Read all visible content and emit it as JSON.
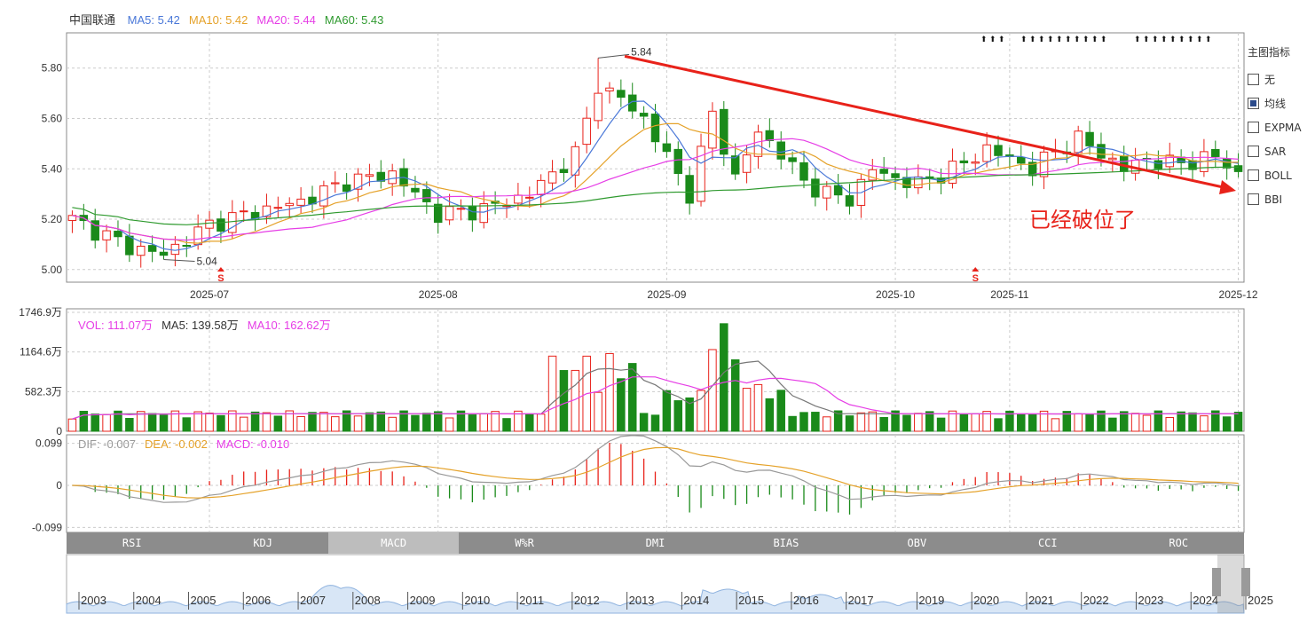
{
  "stock": {
    "name": "中国联通"
  },
  "ma_legend": [
    {
      "text": "MA5: 5.42",
      "color": "#4a78d8"
    },
    {
      "text": "MA10: 5.42",
      "color": "#e5a22a"
    },
    {
      "text": "MA20: 5.44",
      "color": "#e63ee6"
    },
    {
      "text": "MA60: 5.43",
      "color": "#2f9a2f"
    }
  ],
  "vol_legend": [
    {
      "text": "VOL: 111.07万",
      "color": "#e63ee6"
    },
    {
      "text": "MA5: 139.58万",
      "color": "#333333"
    },
    {
      "text": "MA10: 162.62万",
      "color": "#e63ee6"
    }
  ],
  "macd_legend": [
    {
      "text": "DIF: -0.007",
      "color": "#999999"
    },
    {
      "text": "DEA: -0.002",
      "color": "#e5a22a"
    },
    {
      "text": "MACD: -0.010",
      "color": "#e63ee6"
    }
  ],
  "side_panel": {
    "title": "主图指标",
    "options": [
      {
        "label": "无",
        "checked": false
      },
      {
        "label": "均线",
        "checked": true
      },
      {
        "label": "EXPMA",
        "checked": false
      },
      {
        "label": "SAR",
        "checked": false
      },
      {
        "label": "BOLL",
        "checked": false
      },
      {
        "label": "BBI",
        "checked": false
      }
    ]
  },
  "tabs": [
    {
      "label": "RSI",
      "active": false
    },
    {
      "label": "KDJ",
      "active": false
    },
    {
      "label": "MACD",
      "active": true
    },
    {
      "label": "W%R",
      "active": false
    },
    {
      "label": "DMI",
      "active": false
    },
    {
      "label": "BIAS",
      "active": false
    },
    {
      "label": "OBV",
      "active": false
    },
    {
      "label": "CCI",
      "active": false
    },
    {
      "label": "ROC",
      "active": false
    }
  ],
  "annotation": "已经破位了",
  "chart_data": [
    {
      "type": "candlestick",
      "y_ticks": [
        "5.80",
        "5.60",
        "5.40",
        "5.20",
        "5.00"
      ],
      "y_tick_values": [
        5.8,
        5.6,
        5.4,
        5.2,
        5.0
      ],
      "ylim": [
        4.95,
        5.94
      ],
      "x_ticks": [
        "2025-07",
        "2025-08",
        "2025-09",
        "2025-10",
        "2025-11",
        "2025-12"
      ],
      "x_tick_index": [
        12,
        32,
        52,
        72,
        82,
        102
      ],
      "n_bars": 103,
      "high_label": {
        "text": "5.84",
        "index": 46,
        "value": 5.84
      },
      "low_label": {
        "text": "5.04",
        "index": 8,
        "value": 5.04
      },
      "s_markers": [
        13,
        79
      ],
      "key_closes": [
        [
          0,
          5.2
        ],
        [
          5,
          5.09
        ],
        [
          8,
          5.06
        ],
        [
          12,
          5.18
        ],
        [
          16,
          5.23
        ],
        [
          20,
          5.27
        ],
        [
          24,
          5.35
        ],
        [
          28,
          5.38
        ],
        [
          32,
          5.22
        ],
        [
          36,
          5.24
        ],
        [
          40,
          5.3
        ],
        [
          44,
          5.46
        ],
        [
          46,
          5.72
        ],
        [
          48,
          5.68
        ],
        [
          50,
          5.6
        ],
        [
          52,
          5.45
        ],
        [
          54,
          5.3
        ],
        [
          56,
          5.62
        ],
        [
          58,
          5.36
        ],
        [
          60,
          5.55
        ],
        [
          62,
          5.46
        ],
        [
          64,
          5.35
        ],
        [
          66,
          5.3
        ],
        [
          68,
          5.28
        ],
        [
          70,
          5.4
        ],
        [
          72,
          5.36
        ],
        [
          74,
          5.34
        ],
        [
          76,
          5.38
        ],
        [
          78,
          5.42
        ],
        [
          80,
          5.48
        ],
        [
          82,
          5.44
        ],
        [
          84,
          5.4
        ],
        [
          86,
          5.47
        ],
        [
          88,
          5.52
        ],
        [
          90,
          5.46
        ],
        [
          92,
          5.4
        ],
        [
          94,
          5.44
        ],
        [
          96,
          5.42
        ],
        [
          98,
          5.43
        ],
        [
          100,
          5.45
        ],
        [
          102,
          5.38
        ]
      ]
    },
    {
      "type": "bar",
      "name": "VOL",
      "y_ticks": [
        "1746.9万",
        "1164.6万",
        "582.3万",
        "0"
      ],
      "y_tick_values": [
        1746.9,
        1164.6,
        582.3,
        0
      ]
    },
    {
      "type": "bar",
      "name": "MACD",
      "y_ticks": [
        "0.099",
        "0",
        "-0.099"
      ],
      "y_tick_values": [
        0.099,
        0,
        -0.099
      ]
    },
    {
      "type": "area",
      "name": "history",
      "x_ticks": [
        "2003",
        "2004",
        "2005",
        "2006",
        "2007",
        "2008",
        "2009",
        "2010",
        "2011",
        "2012",
        "2013",
        "2014",
        "2015",
        "2016",
        "2017",
        "2019",
        "2020",
        "2021",
        "2022",
        "2023",
        "2024",
        "2025"
      ]
    }
  ]
}
